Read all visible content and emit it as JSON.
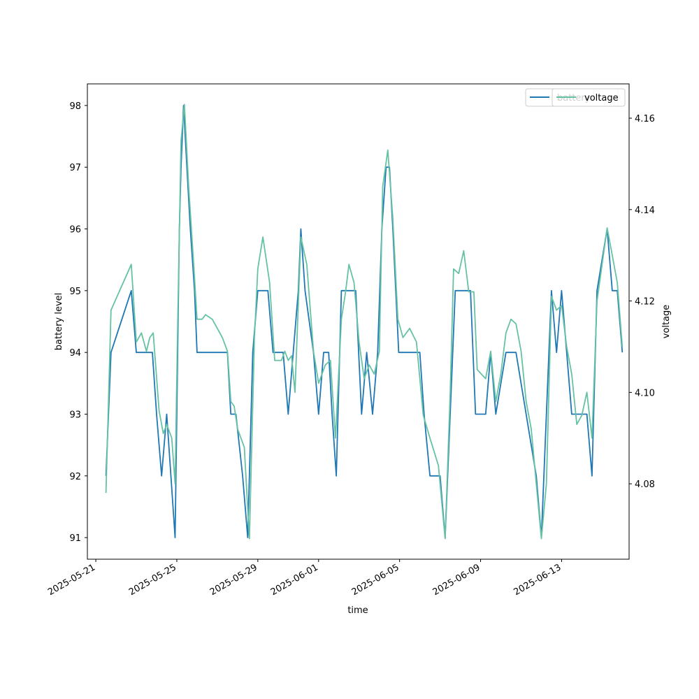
{
  "chart_data": {
    "type": "line",
    "xlabel": "time",
    "ylabel_left": "battery level",
    "ylabel_right": "voltage",
    "x_ticks": [
      "2025-05-21",
      "2025-05-25",
      "2025-05-29",
      "2025-06-01",
      "2025-06-05",
      "2025-06-09",
      "2025-06-13"
    ],
    "xlim": [
      "2025-05-20T14:00",
      "2025-06-16T08:00"
    ],
    "y_left_ticks": [
      91,
      92,
      93,
      94,
      95,
      96,
      97,
      98
    ],
    "y_left_lim": [
      90.65,
      98.35
    ],
    "y_right_ticks": [
      4.08,
      4.1,
      4.12,
      4.14,
      4.16
    ],
    "y_right_lim": [
      4.0635,
      4.1675
    ],
    "legend_placement": "top-right",
    "colors": {
      "battery": "#1f77b4",
      "voltage": "#66c2a5"
    },
    "series": [
      {
        "name": "battery",
        "axis": "left",
        "points": [
          [
            "2025-05-21T12:00",
            92
          ],
          [
            "2025-05-21T18:00",
            94
          ],
          [
            "2025-05-22T18:00",
            95
          ],
          [
            "2025-05-23T00:00",
            94
          ],
          [
            "2025-05-23T12:00",
            94
          ],
          [
            "2025-05-23T19:00",
            94
          ],
          [
            "2025-05-24T00:00",
            93
          ],
          [
            "2025-05-24T06:00",
            92
          ],
          [
            "2025-05-24T12:00",
            93
          ],
          [
            "2025-05-24T17:00",
            92
          ],
          [
            "2025-05-24T22:00",
            91
          ],
          [
            "2025-05-25T03:00",
            96
          ],
          [
            "2025-05-25T05:00",
            97
          ],
          [
            "2025-05-25T08:00",
            98
          ],
          [
            "2025-05-25T12:00",
            97
          ],
          [
            "2025-05-25T16:00",
            96
          ],
          [
            "2025-05-25T21:00",
            95
          ],
          [
            "2025-05-26T00:00",
            94
          ],
          [
            "2025-05-26T12:00",
            94
          ],
          [
            "2025-05-27T12:00",
            94
          ],
          [
            "2025-05-27T16:00",
            93
          ],
          [
            "2025-05-27T22:00",
            93
          ],
          [
            "2025-05-28T06:00",
            92
          ],
          [
            "2025-05-28T12:00",
            91
          ],
          [
            "2025-05-28T18:00",
            94
          ],
          [
            "2025-05-29T00:00",
            95
          ],
          [
            "2025-05-29T12:00",
            95
          ],
          [
            "2025-05-29T18:00",
            94
          ],
          [
            "2025-05-30T06:00",
            94
          ],
          [
            "2025-05-30T12:00",
            93
          ],
          [
            "2025-05-30T18:00",
            94
          ],
          [
            "2025-05-31T00:00",
            95
          ],
          [
            "2025-05-31T03:00",
            96
          ],
          [
            "2025-05-31T08:00",
            95
          ],
          [
            "2025-05-31T18:00",
            94
          ],
          [
            "2025-06-01T00:00",
            93
          ],
          [
            "2025-06-01T06:00",
            94
          ],
          [
            "2025-06-01T12:00",
            94
          ],
          [
            "2025-06-01T16:00",
            93
          ],
          [
            "2025-06-01T21:00",
            92
          ],
          [
            "2025-06-02T03:00",
            95
          ],
          [
            "2025-06-02T12:00",
            95
          ],
          [
            "2025-06-02T20:00",
            95
          ],
          [
            "2025-06-03T03:00",
            93
          ],
          [
            "2025-06-03T09:00",
            94
          ],
          [
            "2025-06-03T16:00",
            93
          ],
          [
            "2025-06-03T22:00",
            94
          ],
          [
            "2025-06-04T03:00",
            96
          ],
          [
            "2025-06-04T08:00",
            97
          ],
          [
            "2025-06-04T12:00",
            97
          ],
          [
            "2025-06-04T16:00",
            96
          ],
          [
            "2025-06-04T23:00",
            94
          ],
          [
            "2025-06-05T12:00",
            94
          ],
          [
            "2025-06-06T00:00",
            94
          ],
          [
            "2025-06-06T05:00",
            93
          ],
          [
            "2025-06-06T12:00",
            92
          ],
          [
            "2025-06-07T00:00",
            92
          ],
          [
            "2025-06-07T06:00",
            91
          ],
          [
            "2025-06-07T18:00",
            95
          ],
          [
            "2025-06-08T12:00",
            95
          ],
          [
            "2025-06-08T18:00",
            93
          ],
          [
            "2025-06-09T06:00",
            93
          ],
          [
            "2025-06-09T12:00",
            94
          ],
          [
            "2025-06-09T18:00",
            93
          ],
          [
            "2025-06-10T06:00",
            94
          ],
          [
            "2025-06-10T18:00",
            94
          ],
          [
            "2025-06-11T06:00",
            93
          ],
          [
            "2025-06-11T18:00",
            92
          ],
          [
            "2025-06-12T00:00",
            91
          ],
          [
            "2025-06-12T12:00",
            95
          ],
          [
            "2025-06-12T18:00",
            94
          ],
          [
            "2025-06-13T00:00",
            95
          ],
          [
            "2025-06-13T06:00",
            94
          ],
          [
            "2025-06-13T12:00",
            93
          ],
          [
            "2025-06-13T18:00",
            93
          ],
          [
            "2025-06-14T06:00",
            93
          ],
          [
            "2025-06-14T12:00",
            92
          ],
          [
            "2025-06-14T18:00",
            95
          ],
          [
            "2025-06-15T06:00",
            96
          ],
          [
            "2025-06-15T12:00",
            95
          ],
          [
            "2025-06-15T18:00",
            95
          ],
          [
            "2025-06-16T00:00",
            94
          ]
        ]
      },
      {
        "name": "voltage",
        "axis": "right",
        "points": [
          [
            "2025-05-21T12:00",
            4.078
          ],
          [
            "2025-05-21T18:00",
            4.118
          ],
          [
            "2025-05-22T18:00",
            4.128
          ],
          [
            "2025-05-23T00:00",
            4.111
          ],
          [
            "2025-05-23T06:00",
            4.113
          ],
          [
            "2025-05-23T12:00",
            4.109
          ],
          [
            "2025-05-23T16:00",
            4.112
          ],
          [
            "2025-05-23T20:00",
            4.113
          ],
          [
            "2025-05-24T03:00",
            4.096
          ],
          [
            "2025-05-24T08:00",
            4.091
          ],
          [
            "2025-05-24T12:00",
            4.093
          ],
          [
            "2025-05-24T18:00",
            4.09
          ],
          [
            "2025-05-24T22:00",
            4.08
          ],
          [
            "2025-05-25T01:00",
            4.115
          ],
          [
            "2025-05-25T05:00",
            4.155
          ],
          [
            "2025-05-25T09:00",
            4.163
          ],
          [
            "2025-05-25T14:00",
            4.145
          ],
          [
            "2025-05-25T20:00",
            4.128
          ],
          [
            "2025-05-26T00:00",
            4.116
          ],
          [
            "2025-05-26T06:00",
            4.116
          ],
          [
            "2025-05-26T10:00",
            4.117
          ],
          [
            "2025-05-26T18:00",
            4.116
          ],
          [
            "2025-05-27T00:00",
            4.114
          ],
          [
            "2025-05-27T06:00",
            4.112
          ],
          [
            "2025-05-27T12:00",
            4.109
          ],
          [
            "2025-05-27T16:00",
            4.098
          ],
          [
            "2025-05-27T20:00",
            4.097
          ],
          [
            "2025-05-28T00:00",
            4.092
          ],
          [
            "2025-05-28T08:00",
            4.088
          ],
          [
            "2025-05-28T14:00",
            4.068
          ],
          [
            "2025-05-28T20:00",
            4.112
          ],
          [
            "2025-05-29T00:00",
            4.127
          ],
          [
            "2025-05-29T06:00",
            4.134
          ],
          [
            "2025-05-29T14:00",
            4.124
          ],
          [
            "2025-05-29T20:00",
            4.107
          ],
          [
            "2025-05-30T04:00",
            4.107
          ],
          [
            "2025-05-30T08:00",
            4.109
          ],
          [
            "2025-05-30T12:00",
            4.107
          ],
          [
            "2025-05-30T16:00",
            4.108
          ],
          [
            "2025-05-30T20:00",
            4.1
          ],
          [
            "2025-05-31T03:00",
            4.134
          ],
          [
            "2025-05-31T10:00",
            4.128
          ],
          [
            "2025-05-31T18:00",
            4.109
          ],
          [
            "2025-06-01T00:00",
            4.102
          ],
          [
            "2025-06-01T08:00",
            4.106
          ],
          [
            "2025-06-01T14:00",
            4.107
          ],
          [
            "2025-06-01T20:00",
            4.09
          ],
          [
            "2025-06-02T03:00",
            4.116
          ],
          [
            "2025-06-02T08:00",
            4.122
          ],
          [
            "2025-06-02T12:00",
            4.128
          ],
          [
            "2025-06-02T18:00",
            4.124
          ],
          [
            "2025-06-03T00:00",
            4.111
          ],
          [
            "2025-06-03T06:00",
            4.103
          ],
          [
            "2025-06-03T12:00",
            4.106
          ],
          [
            "2025-06-03T18:00",
            4.104
          ],
          [
            "2025-06-04T00:00",
            4.109
          ],
          [
            "2025-06-04T04:00",
            4.145
          ],
          [
            "2025-06-04T10:00",
            4.153
          ],
          [
            "2025-06-04T16:00",
            4.138
          ],
          [
            "2025-06-04T22:00",
            4.116
          ],
          [
            "2025-06-05T04:00",
            4.112
          ],
          [
            "2025-06-05T08:00",
            4.113
          ],
          [
            "2025-06-05T12:00",
            4.114
          ],
          [
            "2025-06-05T20:00",
            4.111
          ],
          [
            "2025-06-06T04:00",
            4.095
          ],
          [
            "2025-06-06T12:00",
            4.09
          ],
          [
            "2025-06-06T22:00",
            4.084
          ],
          [
            "2025-06-07T06:00",
            4.068
          ],
          [
            "2025-06-07T12:00",
            4.1
          ],
          [
            "2025-06-07T16:00",
            4.127
          ],
          [
            "2025-06-07T22:00",
            4.126
          ],
          [
            "2025-06-08T04:00",
            4.131
          ],
          [
            "2025-06-08T10:00",
            4.122
          ],
          [
            "2025-06-08T16:00",
            4.122
          ],
          [
            "2025-06-08T20:00",
            4.105
          ],
          [
            "2025-06-09T06:00",
            4.103
          ],
          [
            "2025-06-09T12:00",
            4.109
          ],
          [
            "2025-06-09T18:00",
            4.098
          ],
          [
            "2025-06-10T00:00",
            4.104
          ],
          [
            "2025-06-10T06:00",
            4.113
          ],
          [
            "2025-06-10T12:00",
            4.116
          ],
          [
            "2025-06-10T18:00",
            4.115
          ],
          [
            "2025-06-11T00:00",
            4.109
          ],
          [
            "2025-06-11T06:00",
            4.098
          ],
          [
            "2025-06-11T12:00",
            4.092
          ],
          [
            "2025-06-11T18:00",
            4.08
          ],
          [
            "2025-06-12T00:00",
            4.068
          ],
          [
            "2025-06-12T06:00",
            4.08
          ],
          [
            "2025-06-12T12:00",
            4.121
          ],
          [
            "2025-06-12T18:00",
            4.118
          ],
          [
            "2025-06-13T00:00",
            4.119
          ],
          [
            "2025-06-13T06:00",
            4.11
          ],
          [
            "2025-06-13T12:00",
            4.104
          ],
          [
            "2025-06-13T18:00",
            4.093
          ],
          [
            "2025-06-14T00:00",
            4.095
          ],
          [
            "2025-06-14T06:00",
            4.1
          ],
          [
            "2025-06-14T12:00",
            4.09
          ],
          [
            "2025-06-14T18:00",
            4.12
          ],
          [
            "2025-06-15T06:00",
            4.136
          ],
          [
            "2025-06-15T12:00",
            4.13
          ],
          [
            "2025-06-15T18:00",
            4.124
          ],
          [
            "2025-06-16T00:00",
            4.11
          ]
        ]
      }
    ]
  }
}
